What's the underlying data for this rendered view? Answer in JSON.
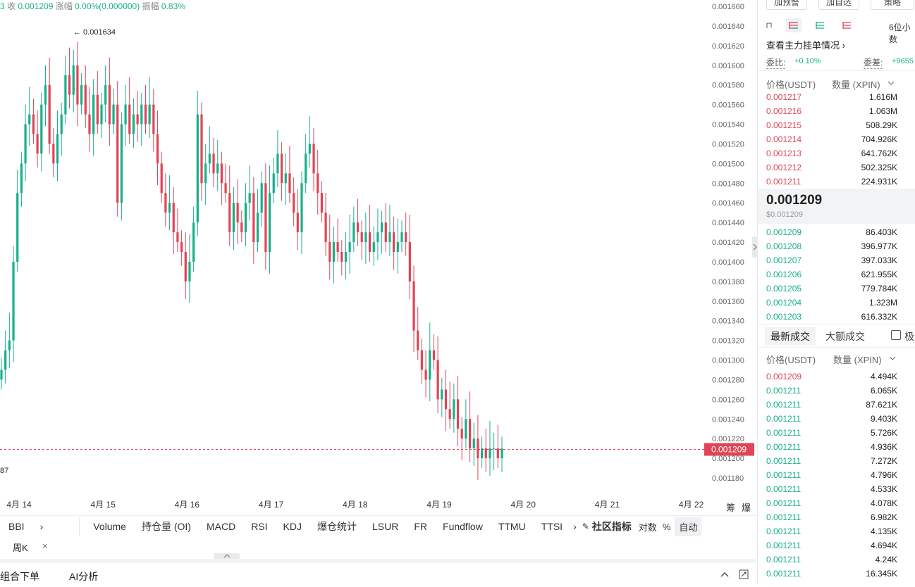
{
  "top_stats": {
    "close_label": "收",
    "close_value": "0.001209",
    "change_label": "涨幅",
    "change_value": "0.00%(0.000000)",
    "amplitude_label": "振幅",
    "amplitude_value": "0.83%"
  },
  "chart_data": {
    "type": "candlestick",
    "x_ticks": [
      "4月 14",
      "4月 15",
      "4月 16",
      "4月 17",
      "4月 18",
      "4月 19",
      "4月 20",
      "4月 21",
      "4月 22"
    ],
    "y_ticks": [
      "0.001660",
      "0.001640",
      "0.001620",
      "0.001600",
      "0.001580",
      "0.001560",
      "0.001540",
      "0.001520",
      "0.001500",
      "0.001480",
      "0.001460",
      "0.001440",
      "0.001420",
      "0.001400",
      "0.001380",
      "0.001360",
      "0.001340",
      "0.001320",
      "0.001300",
      "0.001280",
      "0.001260",
      "0.001240",
      "0.001220",
      "0.001200",
      "0.001180"
    ],
    "ylim": [
      0.00117,
      0.00166
    ],
    "last_price": "0.001209",
    "high_annotation": "← 0.001634",
    "low_annotation_partial": "87",
    "colors": {
      "up": "#17b08a",
      "down": "#e04455"
    },
    "series_close": [
      0.00129,
      0.00131,
      0.00132,
      0.0014,
      0.00147,
      0.0015,
      0.00154,
      0.00155,
      0.00153,
      0.00151,
      0.00156,
      0.00158,
      0.00152,
      0.0015,
      0.00153,
      0.00155,
      0.00159,
      0.00157,
      0.0016,
      0.00156,
      0.00158,
      0.00155,
      0.00153,
      0.00157,
      0.00154,
      0.00156,
      0.00158,
      0.00154,
      0.00156,
      0.00146,
      0.00154,
      0.00156,
      0.00153,
      0.00155,
      0.00154,
      0.00156,
      0.00154,
      0.00156,
      0.00153,
      0.0015,
      0.00147,
      0.00145,
      0.00146,
      0.00143,
      0.00142,
      0.00141,
      0.00138,
      0.0014,
      0.00144,
      0.00155,
      0.00148,
      0.0015,
      0.00151,
      0.00149,
      0.0015,
      0.00148,
      0.00147,
      0.00143,
      0.00146,
      0.00144,
      0.00143,
      0.00146,
      0.00147,
      0.00142,
      0.00145,
      0.00148,
      0.00141,
      0.00147,
      0.00149,
      0.00151,
      0.00148,
      0.00149,
      0.00147,
      0.00145,
      0.00143,
      0.00148,
      0.00151,
      0.00152,
      0.00149,
      0.00147,
      0.00145,
      0.00142,
      0.0014,
      0.00142,
      0.00141,
      0.0014,
      0.00141,
      0.00142,
      0.00144,
      0.00143,
      0.00142,
      0.00143,
      0.00141,
      0.00142,
      0.00143,
      0.00144,
      0.00142,
      0.00143,
      0.00141,
      0.00142,
      0.00143,
      0.00142,
      0.00138,
      0.00133,
      0.00131,
      0.00129,
      0.00128,
      0.00131,
      0.0013,
      0.00126,
      0.00127,
      0.00125,
      0.00124,
      0.00126,
      0.00123,
      0.00122,
      0.00124,
      0.00121,
      0.00122,
      0.0012,
      0.00121,
      0.0012,
      0.00121,
      0.00121,
      0.0012,
      0.00121
    ]
  },
  "toolbar_right": [
    "筹",
    "爆"
  ],
  "indicators": {
    "bbi": "BBI",
    "items": [
      "Volume",
      "持仓量 (OI)",
      "MACD",
      "RSI",
      "KDJ",
      "爆仓统计",
      "LSUR",
      "FR",
      "Fundflow",
      "TTMU",
      "TTSI"
    ],
    "community": "社区指标",
    "log": "对数",
    "percent": "%",
    "auto": "自动"
  },
  "weekk": {
    "label": "周K",
    "close": "×"
  },
  "bottom": {
    "combo": "组合下单",
    "ai": "AI分析"
  },
  "sidebar": {
    "top_buttons": [
      "加预警",
      "加自选",
      "策略"
    ],
    "precision": "6位小数",
    "main_orders_link": "查看主力挂单情况",
    "ratio_label": "委比:",
    "ratio_value": "+0.10%",
    "diff_label": "委差:",
    "diff_value": "+9655",
    "ob_header_price": "价格(USDT)",
    "ob_header_qty": "数量 (XPIN)",
    "asks": [
      {
        "price": "0.001217",
        "qty": "1.616M"
      },
      {
        "price": "0.001216",
        "qty": "1.063M"
      },
      {
        "price": "0.001215",
        "qty": "508.29K"
      },
      {
        "price": "0.001214",
        "qty": "704.926K"
      },
      {
        "price": "0.001213",
        "qty": "641.762K"
      },
      {
        "price": "0.001212",
        "qty": "502.325K"
      },
      {
        "price": "0.001211",
        "qty": "224.931K"
      }
    ],
    "mid_price": "0.001209",
    "mid_usd": "$0.001209",
    "bids": [
      {
        "price": "0.001209",
        "qty": "86.403K"
      },
      {
        "price": "0.001208",
        "qty": "396.977K"
      },
      {
        "price": "0.001207",
        "qty": "397.033K"
      },
      {
        "price": "0.001206",
        "qty": "621.955K"
      },
      {
        "price": "0.001205",
        "qty": "779.784K"
      },
      {
        "price": "0.001204",
        "qty": "1.323M"
      },
      {
        "price": "0.001203",
        "qty": "616.332K"
      }
    ],
    "trades_tab_latest": "最新成交",
    "trades_tab_large": "大额成交",
    "trades_checkbox_label": "极",
    "trades_header_price": "价格(USDT)",
    "trades_header_qty": "数量 (XPIN)",
    "trades": [
      {
        "price": "0.001209",
        "qty": "4.494K",
        "side": "sell"
      },
      {
        "price": "0.001211",
        "qty": "6.065K",
        "side": "buy"
      },
      {
        "price": "0.001211",
        "qty": "87.621K",
        "side": "buy"
      },
      {
        "price": "0.001211",
        "qty": "9.403K",
        "side": "buy"
      },
      {
        "price": "0.001211",
        "qty": "5.726K",
        "side": "buy"
      },
      {
        "price": "0.001211",
        "qty": "4.936K",
        "side": "buy"
      },
      {
        "price": "0.001211",
        "qty": "7.272K",
        "side": "buy"
      },
      {
        "price": "0.001211",
        "qty": "4.796K",
        "side": "buy"
      },
      {
        "price": "0.001211",
        "qty": "4.533K",
        "side": "buy"
      },
      {
        "price": "0.001211",
        "qty": "4.078K",
        "side": "buy"
      },
      {
        "price": "0.001211",
        "qty": "6.982K",
        "side": "buy"
      },
      {
        "price": "0.001211",
        "qty": "4.135K",
        "side": "buy"
      },
      {
        "price": "0.001211",
        "qty": "4.694K",
        "side": "buy"
      },
      {
        "price": "0.001211",
        "qty": "4.24K",
        "side": "buy"
      },
      {
        "price": "0.001211",
        "qty": "16.345K",
        "side": "buy"
      }
    ]
  }
}
